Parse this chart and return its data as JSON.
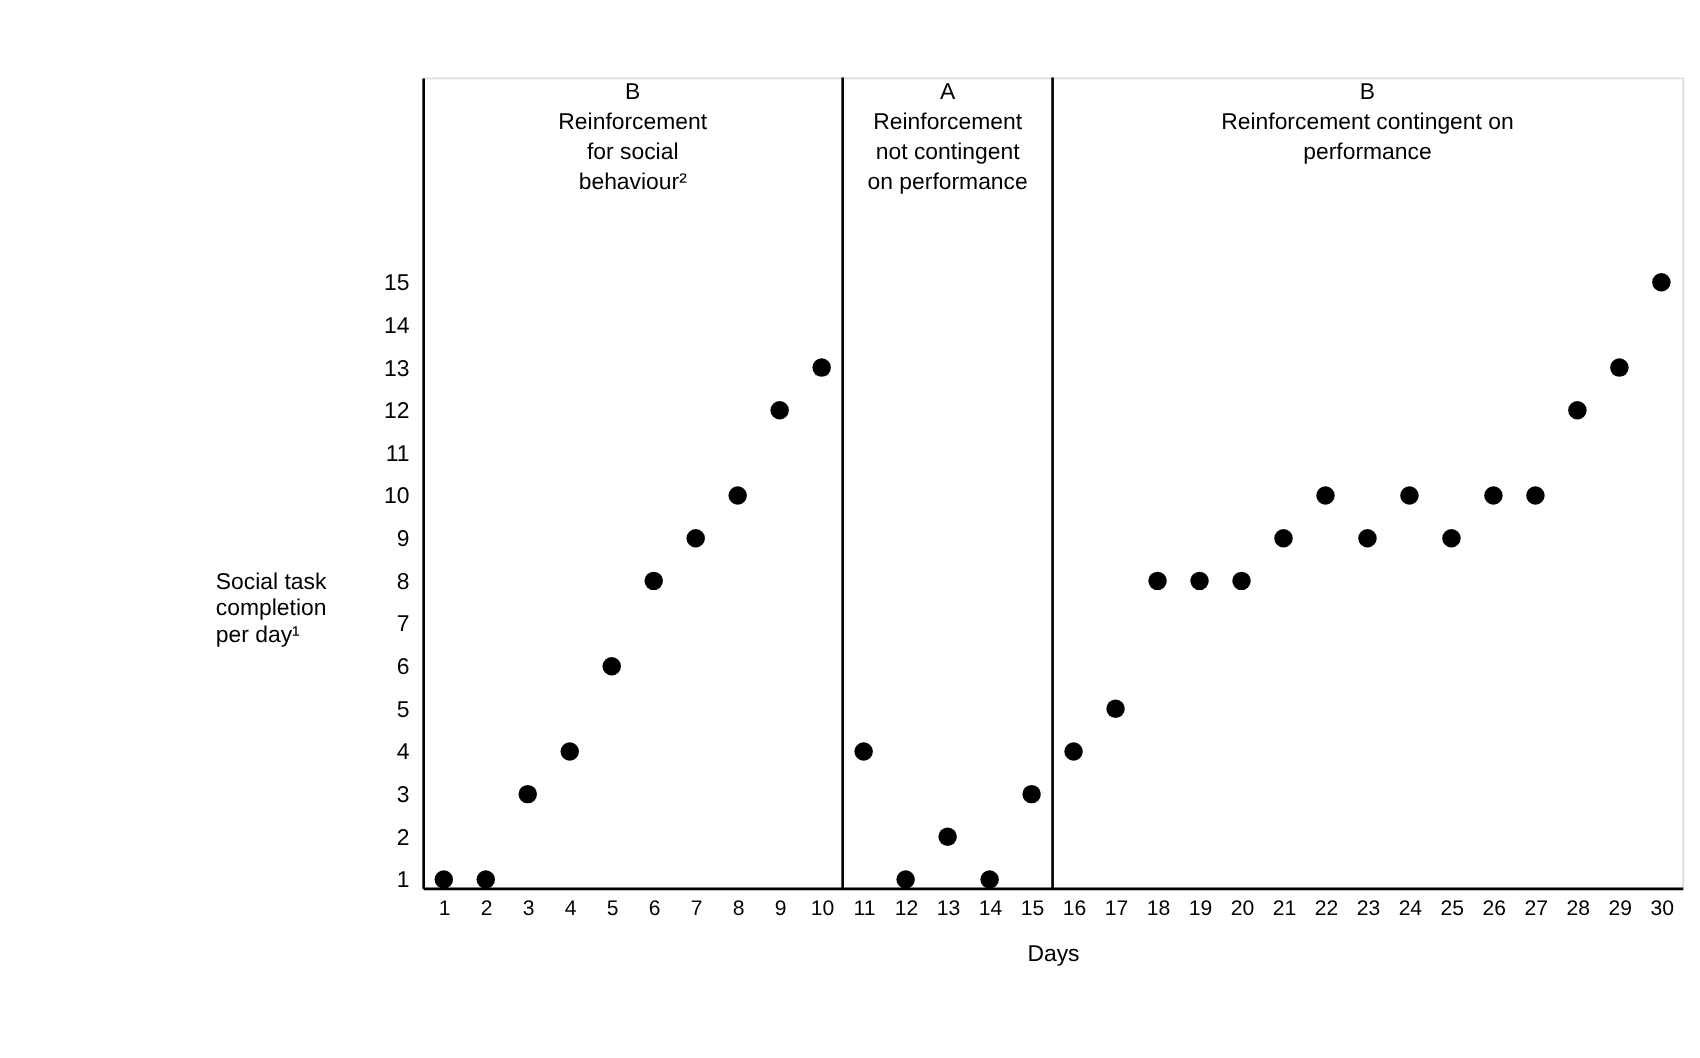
{
  "chart_data": {
    "type": "scatter",
    "xlabel": "Days",
    "ylabel": "Social task completion per day¹",
    "x": [
      1,
      2,
      3,
      4,
      5,
      6,
      7,
      8,
      9,
      10,
      11,
      12,
      13,
      14,
      15,
      16,
      17,
      18,
      19,
      20,
      21,
      22,
      23,
      24,
      25,
      26,
      27,
      28,
      29,
      30
    ],
    "values": [
      1,
      1,
      3,
      4,
      6,
      8,
      9,
      10,
      12,
      13,
      4,
      1,
      2,
      1,
      3,
      4,
      5,
      8,
      8,
      8,
      9,
      10,
      9,
      10,
      9,
      10,
      10,
      12,
      13,
      15
    ],
    "color": "#000000",
    "marker": "circle",
    "grid": false,
    "xlim": [
      0.5,
      30.5
    ],
    "ylim": [
      0.8,
      19.8
    ],
    "xticks": [
      1,
      2,
      3,
      4,
      5,
      6,
      7,
      8,
      9,
      10,
      11,
      12,
      13,
      14,
      15,
      16,
      17,
      18,
      19,
      20,
      21,
      22,
      23,
      24,
      25,
      26,
      27,
      28,
      29,
      30
    ],
    "yticks": [
      1,
      2,
      3,
      4,
      5,
      6,
      7,
      8,
      9,
      10,
      11,
      12,
      13,
      14,
      15
    ],
    "ref_lines": [
      {
        "axis": "x",
        "value": 10.5,
        "color": "#000000"
      },
      {
        "axis": "x",
        "value": 15.5,
        "color": "#000000"
      }
    ],
    "annotations": [
      "B\nReinforcement\nfor social\nbehaviour²",
      "A\nReinforcement\nnot contingent\non performance",
      "B\nReinforcement contingent on\nperformance"
    ]
  }
}
